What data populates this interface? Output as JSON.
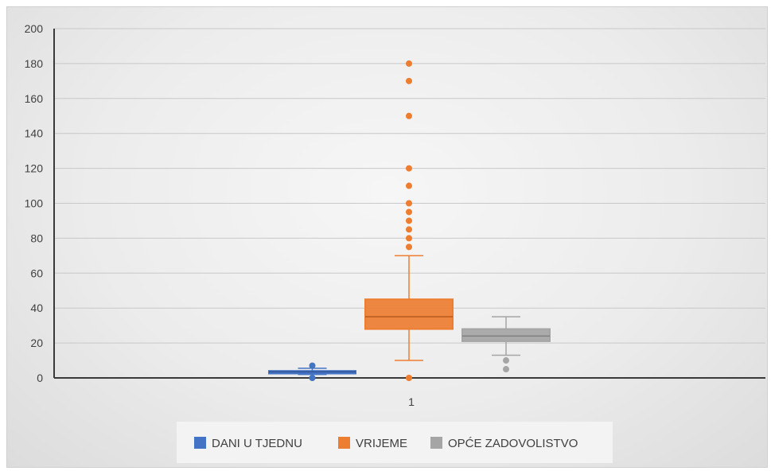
{
  "chart_data": {
    "type": "box",
    "categories": [
      "1"
    ],
    "ylim": [
      0,
      200
    ],
    "yticks": [
      0,
      20,
      40,
      60,
      80,
      100,
      120,
      140,
      160,
      180,
      200
    ],
    "grid": true,
    "legend_position": "bottom",
    "series": [
      {
        "name": "DANI U TJEDNU",
        "color": "#4472c4",
        "whisker_low": 2,
        "q1": 2.5,
        "median": 3.5,
        "q3": 4,
        "whisker_high": 5.5,
        "outliers": [
          0,
          7
        ]
      },
      {
        "name": "VRIJEME",
        "color": "#ed7d31",
        "whisker_low": 10,
        "q1": 28,
        "median": 35,
        "q3": 45,
        "whisker_high": 70,
        "outliers": [
          0,
          75,
          80,
          85,
          90,
          95,
          100,
          110,
          120,
          150,
          170,
          180
        ]
      },
      {
        "name": "OPĆE ZADOVOLJSTVO",
        "color": "#a5a5a5",
        "whisker_low": 13,
        "q1": 21,
        "median": 24,
        "q3": 28,
        "whisker_high": 35,
        "outliers": [
          5,
          10
        ]
      }
    ]
  },
  "legend_labels": {
    "s0": "DANI U TJEDNU",
    "s1": "VRIJEME",
    "s2": "OPĆE ZADOVOLISTVO"
  }
}
